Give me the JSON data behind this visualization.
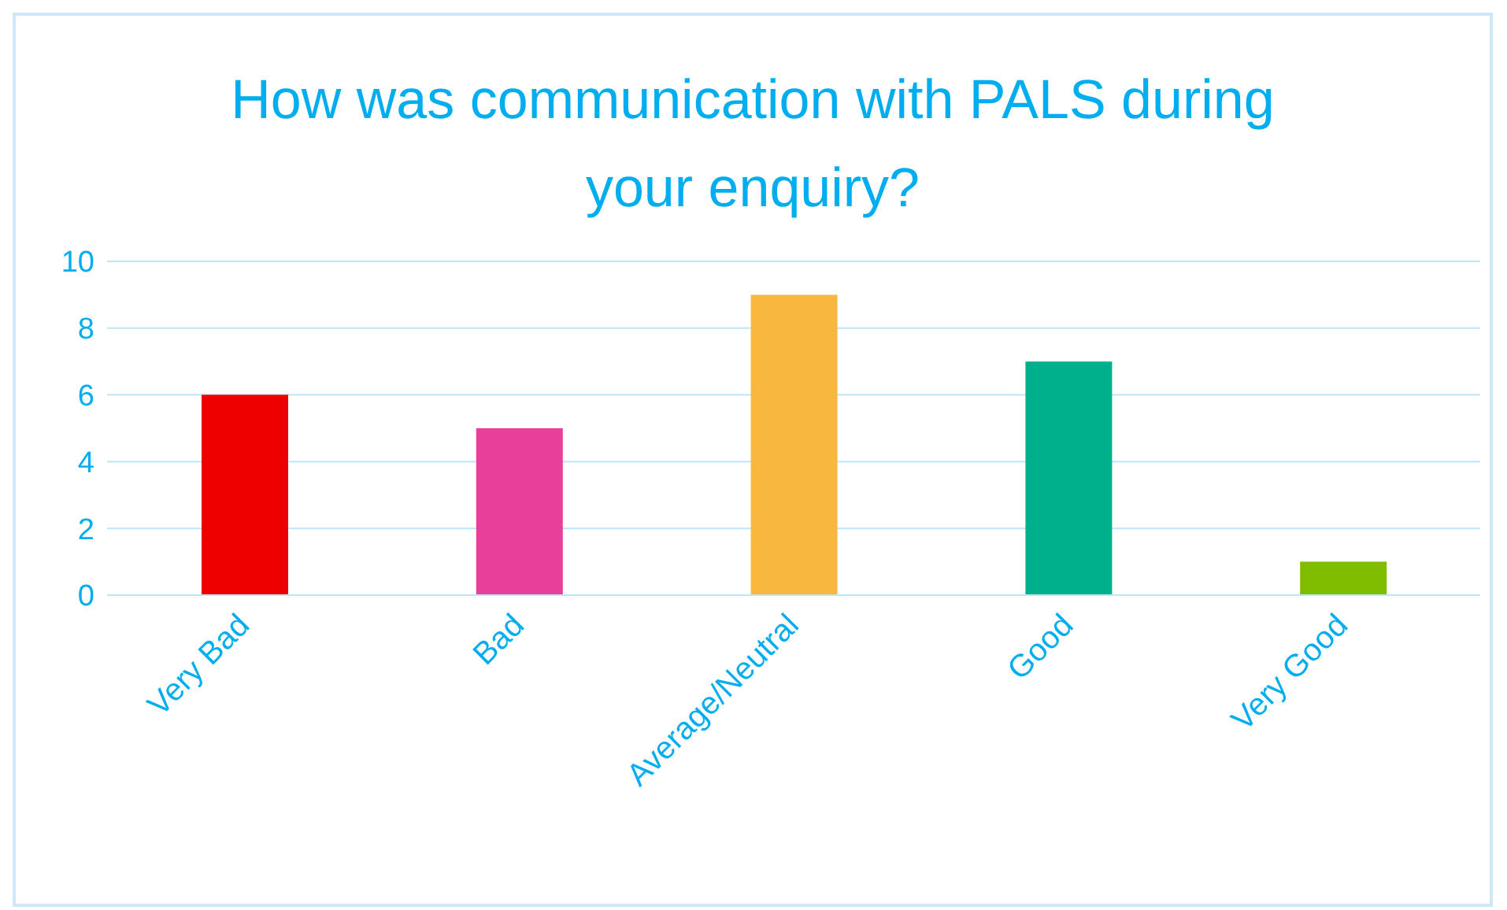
{
  "chart_data": {
    "type": "bar",
    "title": "How was communication with PALS during your enquiry?",
    "categories": [
      "Very Bad",
      "Bad",
      "Average/Neutral",
      "Good",
      "Very Good"
    ],
    "values": [
      6,
      5,
      9,
      7,
      1
    ],
    "colors": [
      "#ee0000",
      "#e8409a",
      "#f8b73e",
      "#00b08c",
      "#80bd00"
    ],
    "ylim": [
      0,
      10
    ],
    "yticks": [
      0,
      2,
      4,
      6,
      8,
      10
    ],
    "grid": "y"
  }
}
